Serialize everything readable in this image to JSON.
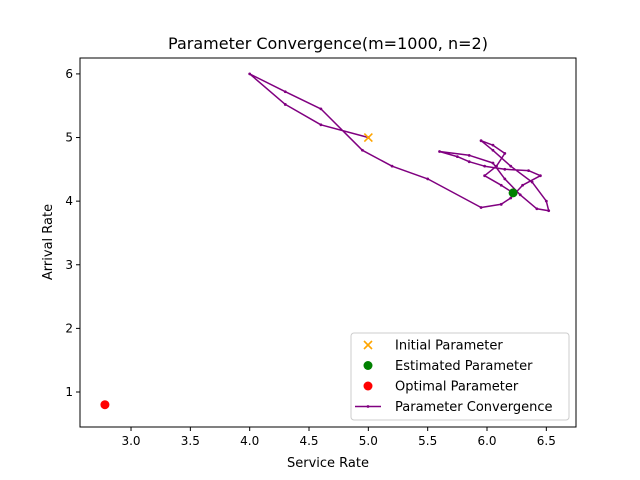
{
  "chart_data": {
    "type": "line",
    "title": "Parameter Convergence(m=1000, n=2)",
    "xlabel": "Service Rate",
    "ylabel": "Arrival Rate",
    "xlim": [
      2.57,
      6.75
    ],
    "ylim": [
      0.45,
      6.25
    ],
    "xticks": [
      "3.0",
      "3.5",
      "4.0",
      "4.5",
      "5.0",
      "5.5",
      "6.0",
      "6.5"
    ],
    "xtick_values": [
      3.0,
      3.5,
      4.0,
      4.5,
      5.0,
      5.5,
      6.0,
      6.5
    ],
    "yticks": [
      "1",
      "2",
      "3",
      "4",
      "5",
      "6"
    ],
    "ytick_values": [
      1,
      2,
      3,
      4,
      5,
      6
    ],
    "grid": false,
    "legend_position": "lower-right",
    "series": [
      {
        "name": "Initial Parameter",
        "kind": "scatter",
        "marker": "x",
        "color": "#ffa500",
        "points": [
          [
            5.0,
            5.0
          ]
        ]
      },
      {
        "name": "Estimated Parameter",
        "kind": "scatter",
        "marker": "circle",
        "color": "#008000",
        "points": [
          [
            6.22,
            4.13
          ]
        ]
      },
      {
        "name": "Optimal Parameter",
        "kind": "scatter",
        "marker": "circle",
        "color": "#ff0000",
        "points": [
          [
            2.78,
            0.8
          ]
        ]
      },
      {
        "name": "Parameter Convergence",
        "kind": "line",
        "marker": "dot",
        "color": "#800080",
        "points": [
          [
            5.0,
            5.0
          ],
          [
            4.6,
            5.2
          ],
          [
            4.3,
            5.52
          ],
          [
            4.0,
            6.0
          ],
          [
            4.3,
            5.72
          ],
          [
            4.6,
            5.45
          ],
          [
            4.95,
            4.8
          ],
          [
            5.2,
            4.55
          ],
          [
            5.5,
            4.35
          ],
          [
            5.95,
            3.9
          ],
          [
            6.12,
            3.95
          ],
          [
            6.2,
            4.05
          ],
          [
            6.3,
            4.25
          ],
          [
            6.45,
            4.4
          ],
          [
            6.35,
            4.48
          ],
          [
            6.15,
            4.5
          ],
          [
            5.98,
            4.55
          ],
          [
            5.85,
            4.62
          ],
          [
            5.75,
            4.7
          ],
          [
            5.6,
            4.78
          ],
          [
            5.85,
            4.72
          ],
          [
            6.05,
            4.6
          ],
          [
            6.15,
            4.35
          ],
          [
            6.28,
            4.1
          ],
          [
            6.42,
            3.88
          ],
          [
            6.52,
            3.85
          ],
          [
            6.5,
            4.0
          ],
          [
            6.38,
            4.3
          ],
          [
            6.2,
            4.55
          ],
          [
            6.05,
            4.8
          ],
          [
            5.95,
            4.95
          ],
          [
            6.05,
            4.88
          ],
          [
            6.15,
            4.75
          ],
          [
            6.08,
            4.55
          ],
          [
            5.98,
            4.4
          ],
          [
            6.12,
            4.25
          ],
          [
            6.22,
            4.13
          ]
        ]
      }
    ]
  }
}
